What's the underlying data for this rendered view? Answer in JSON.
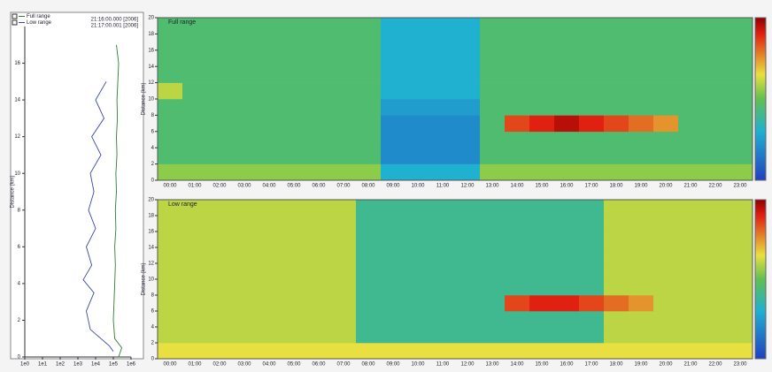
{
  "chart_data": [
    {
      "type": "profile",
      "ylabel": "Distance (km)",
      "log_scale": true,
      "annotations": [
        "21:16:00.000 [2006]",
        "21:17:00.001 [2006]"
      ],
      "xlim": [
        1,
        1000000
      ],
      "xticks": [
        {
          "value": 1,
          "label": "1e0"
        },
        {
          "value": 10,
          "label": "1e1"
        },
        {
          "value": 100,
          "label": "1e2"
        },
        {
          "value": 1000,
          "label": "1e3"
        },
        {
          "value": 10000,
          "label": "1e4"
        },
        {
          "value": 100000,
          "label": "1e5"
        },
        {
          "value": 1000000,
          "label": "1e6"
        }
      ],
      "ylim": [
        0,
        18
      ],
      "yticks": [
        0,
        2,
        4,
        6,
        8,
        10,
        12,
        14,
        16
      ],
      "series": [
        {
          "name": "Full range",
          "color": "#2e7d32",
          "x": [
            200000,
            300000,
            120000,
            100000,
            110000,
            120000,
            130000,
            120000,
            140000,
            130000,
            150000,
            140000,
            160000,
            150000,
            170000,
            160000,
            180000,
            200000,
            150000
          ],
          "y": [
            0,
            0.5,
            1,
            2,
            3,
            4,
            5,
            6,
            7,
            8,
            9,
            10,
            11,
            12,
            13,
            14,
            15,
            16,
            17
          ]
        },
        {
          "name": "Low range",
          "color": "#3a46a8",
          "x": [
            100000,
            60000,
            20000,
            5000,
            3000,
            8000,
            2000,
            6000,
            3000,
            10000,
            4000,
            8000,
            5000,
            20000,
            6000,
            30000,
            10000,
            40000
          ],
          "y": [
            0.3,
            0.6,
            1,
            1.5,
            2.5,
            3.5,
            4.2,
            5,
            6,
            7,
            8,
            9,
            10,
            11,
            12,
            13,
            14,
            15
          ]
        }
      ]
    },
    {
      "type": "heatmap",
      "title": "Full range",
      "ylabel": "Distance (km)",
      "categories": [
        "00:00",
        "01:00",
        "02:00",
        "03:00",
        "04:00",
        "05:00",
        "06:00",
        "07:00",
        "08:00",
        "09:00",
        "10:00",
        "11:00",
        "12:00",
        "13:00",
        "14:00",
        "15:00",
        "16:00",
        "17:00",
        "18:00",
        "19:00",
        "20:00",
        "21:00",
        "22:00",
        "23:00"
      ],
      "ylim": [
        0,
        20
      ],
      "yticks": [
        0,
        2,
        4,
        6,
        8,
        10,
        12,
        14,
        16,
        18,
        20
      ],
      "y_bins": [
        0,
        2,
        4,
        6,
        8,
        10,
        12,
        14,
        16,
        18,
        20
      ],
      "rows": [
        [
          0.55,
          0.55,
          0.55,
          0.55,
          0.55,
          0.55,
          0.55,
          0.55,
          0.55,
          0.3,
          0.3,
          0.3,
          0.3,
          0.55,
          0.55,
          0.55,
          0.55,
          0.55,
          0.55,
          0.55,
          0.55,
          0.55,
          0.55,
          0.55
        ],
        [
          0.45,
          0.45,
          0.45,
          0.45,
          0.45,
          0.45,
          0.45,
          0.45,
          0.45,
          0.2,
          0.2,
          0.2,
          0.2,
          0.45,
          0.45,
          0.45,
          0.45,
          0.45,
          0.45,
          0.45,
          0.45,
          0.45,
          0.45,
          0.45
        ],
        [
          0.45,
          0.45,
          0.45,
          0.45,
          0.45,
          0.45,
          0.45,
          0.45,
          0.45,
          0.2,
          0.2,
          0.2,
          0.2,
          0.45,
          0.45,
          0.45,
          0.45,
          0.45,
          0.45,
          0.45,
          0.45,
          0.45,
          0.45,
          0.45
        ],
        [
          0.45,
          0.45,
          0.45,
          0.45,
          0.45,
          0.45,
          0.45,
          0.45,
          0.45,
          0.2,
          0.2,
          0.2,
          0.2,
          0.45,
          0.85,
          0.9,
          0.95,
          0.9,
          0.85,
          0.8,
          0.75,
          0.45,
          0.45,
          0.45
        ],
        [
          0.45,
          0.45,
          0.45,
          0.45,
          0.45,
          0.45,
          0.45,
          0.45,
          0.45,
          0.25,
          0.25,
          0.25,
          0.25,
          0.45,
          0.45,
          0.45,
          0.45,
          0.45,
          0.45,
          0.45,
          0.45,
          0.45,
          0.45,
          0.45
        ],
        [
          0.6,
          0.45,
          0.45,
          0.45,
          0.45,
          0.45,
          0.45,
          0.45,
          0.45,
          0.3,
          0.3,
          0.3,
          0.3,
          0.45,
          0.45,
          0.45,
          0.45,
          0.45,
          0.45,
          0.45,
          0.45,
          0.45,
          0.45,
          0.45
        ],
        [
          0.45,
          0.45,
          0.45,
          0.45,
          0.45,
          0.45,
          0.45,
          0.45,
          0.45,
          0.3,
          0.3,
          0.3,
          0.3,
          0.45,
          0.45,
          0.45,
          0.45,
          0.45,
          0.45,
          0.45,
          0.45,
          0.45,
          0.45,
          0.45
        ],
        [
          0.45,
          0.45,
          0.45,
          0.45,
          0.45,
          0.45,
          0.45,
          0.45,
          0.45,
          0.3,
          0.3,
          0.3,
          0.3,
          0.45,
          0.45,
          0.45,
          0.45,
          0.45,
          0.45,
          0.45,
          0.45,
          0.45,
          0.45,
          0.45
        ],
        [
          0.45,
          0.45,
          0.45,
          0.45,
          0.45,
          0.45,
          0.45,
          0.45,
          0.45,
          0.3,
          0.3,
          0.3,
          0.3,
          0.45,
          0.45,
          0.45,
          0.45,
          0.45,
          0.45,
          0.45,
          0.45,
          0.45,
          0.45,
          0.45
        ],
        [
          0.45,
          0.45,
          0.45,
          0.45,
          0.45,
          0.45,
          0.45,
          0.45,
          0.45,
          0.3,
          0.3,
          0.3,
          0.3,
          0.45,
          0.45,
          0.45,
          0.45,
          0.45,
          0.45,
          0.45,
          0.45,
          0.45,
          0.45,
          0.45
        ]
      ]
    },
    {
      "type": "heatmap",
      "title": "Low range",
      "ylabel": "Distance (km)",
      "categories": [
        "00:00",
        "01:00",
        "02:00",
        "03:00",
        "04:00",
        "05:00",
        "06:00",
        "07:00",
        "08:00",
        "09:00",
        "10:00",
        "11:00",
        "12:00",
        "13:00",
        "14:00",
        "15:00",
        "16:00",
        "17:00",
        "18:00",
        "19:00",
        "20:00",
        "21:00",
        "22:00",
        "23:00"
      ],
      "ylim": [
        0,
        20
      ],
      "yticks": [
        0,
        2,
        4,
        6,
        8,
        10,
        12,
        14,
        16,
        18,
        20
      ],
      "y_bins": [
        0,
        2,
        4,
        6,
        8,
        10,
        12,
        14,
        16,
        18,
        20
      ],
      "rows": [
        [
          0.65,
          0.65,
          0.65,
          0.65,
          0.65,
          0.65,
          0.65,
          0.65,
          0.65,
          0.65,
          0.65,
          0.65,
          0.65,
          0.65,
          0.65,
          0.65,
          0.65,
          0.65,
          0.65,
          0.65,
          0.65,
          0.65,
          0.65,
          0.65
        ],
        [
          0.6,
          0.6,
          0.6,
          0.6,
          0.6,
          0.6,
          0.6,
          0.6,
          0.4,
          0.4,
          0.4,
          0.4,
          0.4,
          0.4,
          0.4,
          0.4,
          0.4,
          0.4,
          0.6,
          0.6,
          0.6,
          0.6,
          0.6,
          0.6
        ],
        [
          0.6,
          0.6,
          0.6,
          0.6,
          0.6,
          0.6,
          0.6,
          0.6,
          0.4,
          0.4,
          0.4,
          0.4,
          0.4,
          0.4,
          0.4,
          0.4,
          0.4,
          0.4,
          0.6,
          0.6,
          0.6,
          0.6,
          0.6,
          0.6
        ],
        [
          0.6,
          0.6,
          0.6,
          0.6,
          0.6,
          0.6,
          0.6,
          0.6,
          0.4,
          0.4,
          0.4,
          0.4,
          0.4,
          0.4,
          0.85,
          0.9,
          0.9,
          0.85,
          0.8,
          0.75,
          0.6,
          0.6,
          0.6,
          0.6
        ],
        [
          0.6,
          0.6,
          0.6,
          0.6,
          0.6,
          0.6,
          0.6,
          0.6,
          0.4,
          0.4,
          0.4,
          0.4,
          0.4,
          0.4,
          0.4,
          0.4,
          0.4,
          0.4,
          0.6,
          0.6,
          0.6,
          0.6,
          0.6,
          0.6
        ],
        [
          0.6,
          0.6,
          0.6,
          0.6,
          0.6,
          0.6,
          0.6,
          0.6,
          0.4,
          0.4,
          0.4,
          0.4,
          0.4,
          0.4,
          0.4,
          0.4,
          0.4,
          0.4,
          0.6,
          0.6,
          0.6,
          0.6,
          0.6,
          0.6
        ],
        [
          0.6,
          0.6,
          0.6,
          0.6,
          0.6,
          0.6,
          0.6,
          0.6,
          0.4,
          0.4,
          0.4,
          0.4,
          0.4,
          0.4,
          0.4,
          0.4,
          0.4,
          0.4,
          0.6,
          0.6,
          0.6,
          0.6,
          0.6,
          0.6
        ],
        [
          0.6,
          0.6,
          0.6,
          0.6,
          0.6,
          0.6,
          0.6,
          0.6,
          0.4,
          0.4,
          0.4,
          0.4,
          0.4,
          0.4,
          0.4,
          0.4,
          0.4,
          0.4,
          0.6,
          0.6,
          0.6,
          0.6,
          0.6,
          0.6
        ],
        [
          0.6,
          0.6,
          0.6,
          0.6,
          0.6,
          0.6,
          0.6,
          0.6,
          0.4,
          0.4,
          0.4,
          0.4,
          0.4,
          0.4,
          0.4,
          0.4,
          0.4,
          0.4,
          0.6,
          0.6,
          0.6,
          0.6,
          0.6,
          0.6
        ],
        [
          0.6,
          0.6,
          0.6,
          0.6,
          0.6,
          0.6,
          0.6,
          0.6,
          0.4,
          0.4,
          0.4,
          0.4,
          0.4,
          0.4,
          0.4,
          0.4,
          0.4,
          0.4,
          0.6,
          0.6,
          0.6,
          0.6,
          0.6,
          0.6
        ]
      ]
    }
  ]
}
